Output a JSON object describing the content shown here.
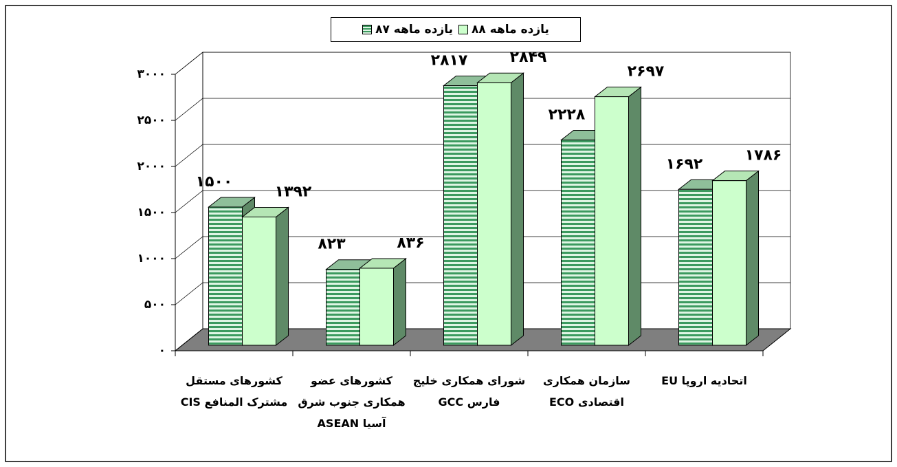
{
  "chart_data": {
    "type": "bar3d",
    "categories": [
      "کشورهای مستقل مشترک المنافع CIS",
      "کشورهای عضو همکاری جنوب شرق آسیا ASEAN",
      "شورای همکاری خلیج فارس GCC",
      "سازمان همکاری اقتصادی ECO",
      "اتحادیه اروپا EU"
    ],
    "series": [
      {
        "name": "یازده ماهه ۸۷",
        "color": "#3c9a5f",
        "values": [
          1500,
          823,
          2817,
          2228,
          1692
        ],
        "value_labels": [
          "۱۵۰۰",
          "۸۲۳",
          "۲۸۱۷",
          "۲۲۲۸",
          "۱۶۹۲"
        ]
      },
      {
        "name": "یازده ماهه ۸۸",
        "color": "#ccffcc",
        "values": [
          1392,
          836,
          2849,
          2697,
          1786
        ],
        "value_labels": [
          "۱۳۹۲",
          "۸۳۶",
          "۲۸۴۹",
          "۲۶۹۷",
          "۱۷۸۶"
        ]
      }
    ],
    "ylim": [
      0,
      3000
    ],
    "yticks": [
      {
        "value": 0,
        "label": "۰"
      },
      {
        "value": 500,
        "label": "۵۰۰"
      },
      {
        "value": 1000,
        "label": "۱۰۰۰"
      },
      {
        "value": 1500,
        "label": "۱۵۰۰"
      },
      {
        "value": 2000,
        "label": "۲۰۰۰"
      },
      {
        "value": 2500,
        "label": "۲۵۰۰"
      },
      {
        "value": 3000,
        "label": "۳۰۰۰"
      }
    ],
    "grid": true,
    "legend": "top"
  }
}
